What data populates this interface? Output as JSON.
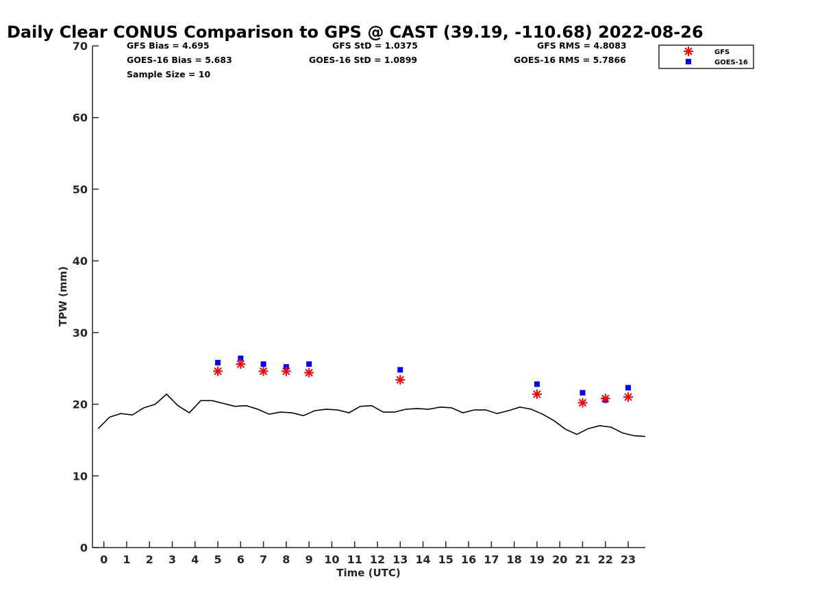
{
  "chart_data": {
    "type": "scatter",
    "title": "Daily Clear CONUS Comparison to GPS @ CAST (39.19, -110.68) 2022-08-26",
    "xlabel": "Time (UTC)",
    "ylabel": "TPW (mm)",
    "xlim": [
      -0.5,
      23.75
    ],
    "ylim": [
      0,
      70
    ],
    "xticks": [
      0,
      1,
      2,
      3,
      4,
      5,
      6,
      7,
      8,
      9,
      10,
      11,
      12,
      13,
      14,
      15,
      16,
      17,
      18,
      19,
      20,
      21,
      22,
      23
    ],
    "yticks": [
      0,
      10,
      20,
      30,
      40,
      50,
      60,
      70
    ],
    "grid": false,
    "legend_position": "top-right",
    "stats": {
      "gfs_bias": "GFS Bias = 4.695",
      "goes_bias": "GOES-16 Bias = 5.683",
      "sample_size": "Sample Size = 10",
      "gfs_std": "GFS StD = 1.0375",
      "goes_std": "GOES-16 StD = 1.0899",
      "gfs_rms": "GFS RMS = 4.8083",
      "goes_rms": "GOES-16 RMS = 5.7866"
    },
    "series": [
      {
        "name": "GFS",
        "marker": "asterisk",
        "color": "#ff0000",
        "x": [
          5,
          6,
          7,
          8,
          9,
          13,
          19,
          21,
          22,
          23
        ],
        "y": [
          24.6,
          25.6,
          24.6,
          24.6,
          24.4,
          23.4,
          21.4,
          20.2,
          20.8,
          21.0
        ]
      },
      {
        "name": "GOES-16",
        "marker": "square",
        "color": "#0000ff",
        "x": [
          5,
          6,
          7,
          8,
          9,
          13,
          19,
          21,
          22,
          23
        ],
        "y": [
          25.8,
          26.4,
          25.6,
          25.2,
          25.6,
          24.8,
          22.8,
          21.6,
          20.6,
          22.3
        ]
      },
      {
        "name": "",
        "marker": "line",
        "color": "#000000",
        "x": [
          -0.25,
          0.25,
          0.75,
          1.25,
          1.75,
          2.25,
          2.75,
          3.25,
          3.75,
          4.25,
          4.75,
          5.25,
          5.75,
          6.25,
          6.75,
          7.25,
          7.75,
          8.25,
          8.75,
          9.25,
          9.75,
          10.25,
          10.75,
          11.25,
          11.75,
          12.25,
          12.75,
          13.25,
          13.75,
          14.25,
          14.75,
          15.25,
          15.75,
          16.25,
          16.75,
          17.25,
          17.75,
          18.25,
          18.75,
          19.25,
          19.75,
          20.25,
          20.75,
          21.25,
          21.75,
          22.25,
          22.75,
          23.25,
          23.75
        ],
        "y": [
          16.6,
          18.2,
          18.7,
          18.5,
          19.5,
          20.0,
          21.4,
          19.8,
          18.8,
          20.5,
          20.5,
          20.1,
          19.7,
          19.8,
          19.3,
          18.6,
          18.9,
          18.8,
          18.4,
          19.1,
          19.3,
          19.2,
          18.8,
          19.7,
          19.8,
          18.9,
          18.9,
          19.3,
          19.4,
          19.3,
          19.6,
          19.5,
          18.8,
          19.2,
          19.2,
          18.7,
          19.1,
          19.6,
          19.3,
          18.6,
          17.7,
          16.5,
          15.8,
          16.6,
          17.0,
          16.8,
          16.0,
          15.6,
          15.5
        ]
      }
    ]
  }
}
